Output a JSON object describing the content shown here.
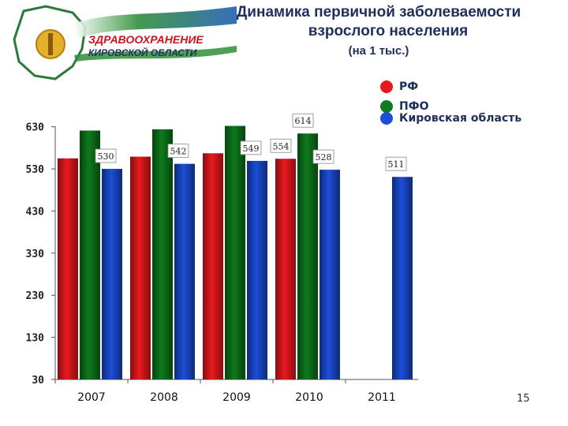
{
  "header": {
    "logo_text_line1": "ЗДРАВООХРАНЕНИЕ",
    "logo_text_line2": "КИРОВСКОЙ ОБЛАСТИ",
    "title_line1": "Динамика первичной заболеваемости",
    "title_line2": "взрослого населения",
    "subtitle": "(на 1 тыс.)"
  },
  "page_number": "15",
  "chart_data": {
    "type": "bar",
    "categories": [
      "2007",
      "2008",
      "2009",
      "2010",
      "2011"
    ],
    "series": [
      {
        "name": "РФ",
        "color": "#e8191e",
        "values": [
          555,
          559,
          567,
          554,
          null
        ]
      },
      {
        "name": "ПФО",
        "color": "#0f7a1e",
        "values": [
          621,
          624,
          632,
          614,
          null
        ]
      },
      {
        "name": "Кировская область",
        "color": "#1c4fd8",
        "values": [
          530,
          542,
          549,
          528,
          511
        ]
      }
    ],
    "data_labels": [
      {
        "category": "2007",
        "series": "Кировская область",
        "text": "530"
      },
      {
        "category": "2008",
        "series": "Кировская область",
        "text": "542"
      },
      {
        "category": "2009",
        "series": "Кировская область",
        "text": "549"
      },
      {
        "category": "2010",
        "series": "РФ",
        "text": "554"
      },
      {
        "category": "2010",
        "series": "ПФО",
        "text": "614"
      },
      {
        "category": "2010",
        "series": "Кировская область",
        "text": "528"
      },
      {
        "category": "2011",
        "series": "Кировская область",
        "text": "511"
      }
    ],
    "yticks": [
      30,
      130,
      230,
      330,
      430,
      530,
      630
    ],
    "ylim": [
      30,
      650
    ],
    "legend_position": "top-right",
    "grid": false
  }
}
